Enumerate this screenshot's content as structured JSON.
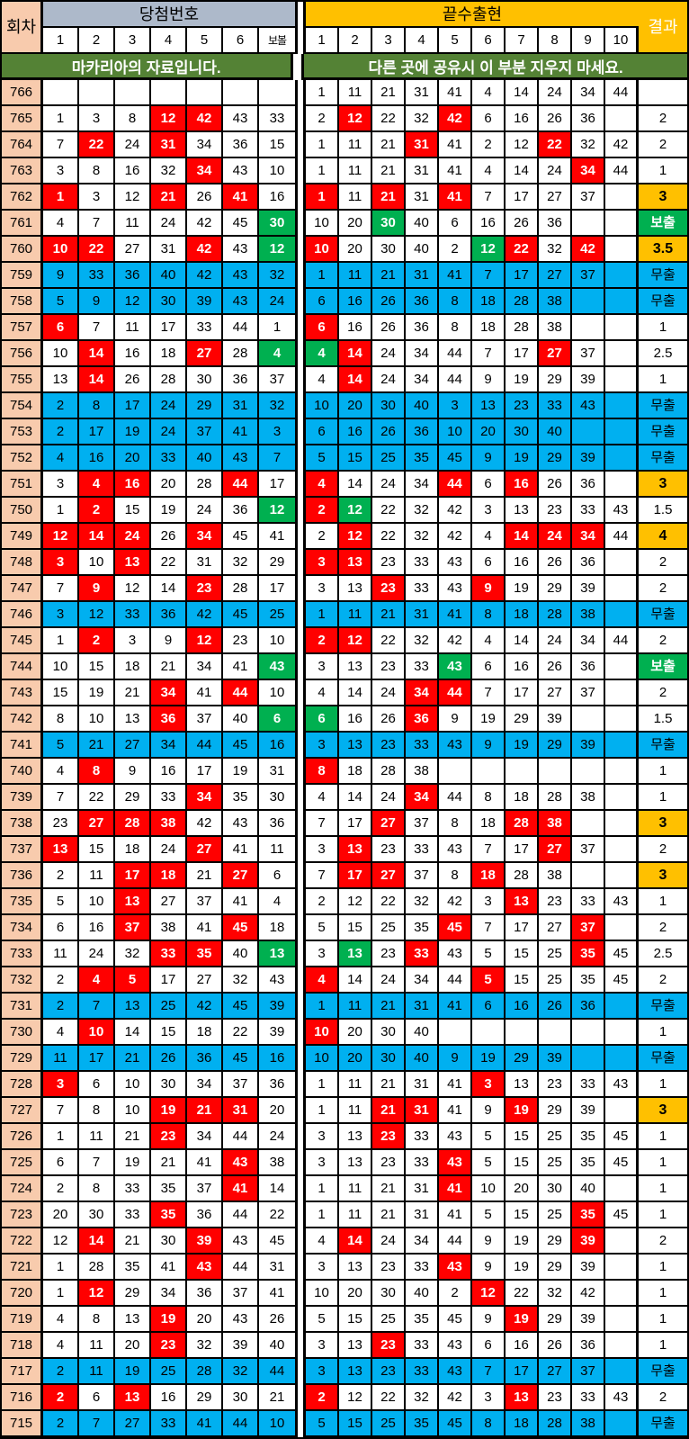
{
  "header": {
    "round_label": "회차",
    "winning_label": "당첨번호",
    "winning_cols": [
      "1",
      "2",
      "3",
      "4",
      "5",
      "6",
      "보볼"
    ],
    "digits_label": "끝수출현",
    "digits_cols": [
      "1",
      "2",
      "3",
      "4",
      "5",
      "6",
      "7",
      "8",
      "9",
      "10"
    ],
    "result_label": "결과"
  },
  "notice": {
    "left": "마카리아의 자료입니다.",
    "right": "다른 곳에 공유시 이 부분 지우지 마세요."
  },
  "colors": {
    "round_bg": "#F8CBAD",
    "winning_header_bg": "#ADB9CA",
    "gold": "#FFC000",
    "notice_bg": "#548235",
    "hit_red": "#FF0000",
    "bonus_green": "#00B050",
    "miss_blue": "#00B0F0"
  },
  "legend": {
    "miss_label": "무출",
    "bonus_label": "보출"
  },
  "rows": [
    {
      "n": "766",
      "l": [
        "",
        "",
        "",
        "",
        "",
        "",
        ""
      ],
      "r": [
        "1",
        "11",
        "21",
        "31",
        "41",
        "4",
        "14",
        "24",
        "34",
        "44"
      ],
      "res": ""
    },
    {
      "n": "765",
      "l": [
        "1",
        "3",
        "8",
        "12:r",
        "42:r",
        "43",
        "33"
      ],
      "r": [
        "2",
        "12:r",
        "22",
        "32",
        "42:r",
        "6",
        "16",
        "26",
        "36",
        ""
      ],
      "res": "2"
    },
    {
      "n": "764",
      "l": [
        "7",
        "22:r",
        "24",
        "31:r",
        "34",
        "36",
        "15"
      ],
      "r": [
        "1",
        "11",
        "21",
        "31:r",
        "41",
        "2",
        "12",
        "22:r",
        "32",
        "42"
      ],
      "res": "2"
    },
    {
      "n": "763",
      "l": [
        "3",
        "8",
        "16",
        "32",
        "34:r",
        "43",
        "10"
      ],
      "r": [
        "1",
        "11",
        "21",
        "31",
        "41",
        "4",
        "14",
        "24",
        "34:r",
        "44"
      ],
      "res": "1"
    },
    {
      "n": "762",
      "l": [
        "1:r",
        "3",
        "12",
        "21:r",
        "26",
        "41:r",
        "16"
      ],
      "r": [
        "1:r",
        "11",
        "21:r",
        "31",
        "41:r",
        "7",
        "17",
        "27",
        "37",
        ""
      ],
      "res": "3:y"
    },
    {
      "n": "761",
      "l": [
        "4",
        "7",
        "11",
        "24",
        "42",
        "45",
        "30:g"
      ],
      "r": [
        "10",
        "20",
        "30:g",
        "40",
        "6",
        "16",
        "26",
        "36",
        "",
        ""
      ],
      "res": "보출:g"
    },
    {
      "n": "760",
      "l": [
        "10:r",
        "22:r",
        "27",
        "31",
        "42:r",
        "43",
        "12:g"
      ],
      "r": [
        "10:r",
        "20",
        "30",
        "40",
        "2",
        "12:g",
        "22:r",
        "32",
        "42:r",
        ""
      ],
      "res": "3.5:y"
    },
    {
      "n": "759",
      "l": [
        "9:b",
        "33:b",
        "36:b",
        "40:b",
        "42:b",
        "43:b",
        "32:b"
      ],
      "r": [
        "1:b",
        "11:b",
        "21:b",
        "31:b",
        "41:b",
        "7:b",
        "17:b",
        "27:b",
        "37:b",
        ":b"
      ],
      "res": "무출:b"
    },
    {
      "n": "758",
      "l": [
        "5:b",
        "9:b",
        "12:b",
        "30:b",
        "39:b",
        "43:b",
        "24:b"
      ],
      "r": [
        "6:b",
        "16:b",
        "26:b",
        "36:b",
        "8:b",
        "18:b",
        "28:b",
        "38:b",
        ":b",
        ":b"
      ],
      "res": "무출:b"
    },
    {
      "n": "757",
      "l": [
        "6:r",
        "7",
        "11",
        "17",
        "33",
        "44",
        "1"
      ],
      "r": [
        "6:r",
        "16",
        "26",
        "36",
        "8",
        "18",
        "28",
        "38",
        "",
        ""
      ],
      "res": "1"
    },
    {
      "n": "756",
      "l": [
        "10",
        "14:r",
        "16",
        "18",
        "27:r",
        "28",
        "4:g"
      ],
      "r": [
        "4:g",
        "14:r",
        "24",
        "34",
        "44",
        "7",
        "17",
        "27:r",
        "37",
        ""
      ],
      "res": "2.5"
    },
    {
      "n": "755",
      "l": [
        "13",
        "14:r",
        "26",
        "28",
        "30",
        "36",
        "37"
      ],
      "r": [
        "4",
        "14:r",
        "24",
        "34",
        "44",
        "9",
        "19",
        "29",
        "39",
        ""
      ],
      "res": "1"
    },
    {
      "n": "754",
      "l": [
        "2:b",
        "8:b",
        "17:b",
        "24:b",
        "29:b",
        "31:b",
        "32:b"
      ],
      "r": [
        "10:b",
        "20:b",
        "30:b",
        "40:b",
        "3:b",
        "13:b",
        "23:b",
        "33:b",
        "43:b",
        ":b"
      ],
      "res": "무출:b"
    },
    {
      "n": "753",
      "l": [
        "2:b",
        "17:b",
        "19:b",
        "24:b",
        "37:b",
        "41:b",
        "3:b"
      ],
      "r": [
        "6:b",
        "16:b",
        "26:b",
        "36:b",
        "10:b",
        "20:b",
        "30:b",
        "40:b",
        ":b",
        ":b"
      ],
      "res": "무출:b"
    },
    {
      "n": "752",
      "l": [
        "4:b",
        "16:b",
        "20:b",
        "33:b",
        "40:b",
        "43:b",
        "7:b"
      ],
      "r": [
        "5:b",
        "15:b",
        "25:b",
        "35:b",
        "45:b",
        "9:b",
        "19:b",
        "29:b",
        "39:b",
        ":b"
      ],
      "res": "무출:b"
    },
    {
      "n": "751",
      "l": [
        "3",
        "4:r",
        "16:r",
        "20",
        "28",
        "44:r",
        "17"
      ],
      "r": [
        "4:r",
        "14",
        "24",
        "34",
        "44:r",
        "6",
        "16:r",
        "26",
        "36",
        ""
      ],
      "res": "3:y"
    },
    {
      "n": "750",
      "l": [
        "1",
        "2:r",
        "15",
        "19",
        "24",
        "36",
        "12:g"
      ],
      "r": [
        "2:r",
        "12:g",
        "22",
        "32",
        "42",
        "3",
        "13",
        "23",
        "33",
        "43"
      ],
      "res": "1.5"
    },
    {
      "n": "749",
      "l": [
        "12:r",
        "14:r",
        "24:r",
        "26",
        "34:r",
        "45",
        "41"
      ],
      "r": [
        "2",
        "12:r",
        "22",
        "32",
        "42",
        "4",
        "14:r",
        "24:r",
        "34:r",
        "44"
      ],
      "res": "4:y"
    },
    {
      "n": "748",
      "l": [
        "3:r",
        "10",
        "13:r",
        "22",
        "31",
        "32",
        "29"
      ],
      "r": [
        "3:r",
        "13:r",
        "23",
        "33",
        "43",
        "6",
        "16",
        "26",
        "36",
        ""
      ],
      "res": "2"
    },
    {
      "n": "747",
      "l": [
        "7",
        "9:r",
        "12",
        "14",
        "23:r",
        "28",
        "17"
      ],
      "r": [
        "3",
        "13",
        "23:r",
        "33",
        "43",
        "9:r",
        "19",
        "29",
        "39",
        ""
      ],
      "res": "2"
    },
    {
      "n": "746",
      "l": [
        "3:b",
        "12:b",
        "33:b",
        "36:b",
        "42:b",
        "45:b",
        "25:b"
      ],
      "r": [
        "1:b",
        "11:b",
        "21:b",
        "31:b",
        "41:b",
        "8:b",
        "18:b",
        "28:b",
        "38:b",
        ":b"
      ],
      "res": "무출:b"
    },
    {
      "n": "745",
      "l": [
        "1",
        "2:r",
        "3",
        "9",
        "12:r",
        "23",
        "10"
      ],
      "r": [
        "2:r",
        "12:r",
        "22",
        "32",
        "42",
        "4",
        "14",
        "24",
        "34",
        "44"
      ],
      "res": "2"
    },
    {
      "n": "744",
      "l": [
        "10",
        "15",
        "18",
        "21",
        "34",
        "41",
        "43:g"
      ],
      "r": [
        "3",
        "13",
        "23",
        "33",
        "43:g",
        "6",
        "16",
        "26",
        "36",
        ""
      ],
      "res": "보출:g"
    },
    {
      "n": "743",
      "l": [
        "15",
        "19",
        "21",
        "34:r",
        "41",
        "44:r",
        "10"
      ],
      "r": [
        "4",
        "14",
        "24",
        "34:r",
        "44:r",
        "7",
        "17",
        "27",
        "37",
        ""
      ],
      "res": "2"
    },
    {
      "n": "742",
      "l": [
        "8",
        "10",
        "13",
        "36:r",
        "37",
        "40",
        "6:g"
      ],
      "r": [
        "6:g",
        "16",
        "26",
        "36:r",
        "9",
        "19",
        "29",
        "39",
        "",
        ""
      ],
      "res": "1.5"
    },
    {
      "n": "741",
      "l": [
        "5:b",
        "21:b",
        "27:b",
        "34:b",
        "44:b",
        "45:b",
        "16:b"
      ],
      "r": [
        "3:b",
        "13:b",
        "23:b",
        "33:b",
        "43:b",
        "9:b",
        "19:b",
        "29:b",
        "39:b",
        ":b"
      ],
      "res": "무출:b"
    },
    {
      "n": "740",
      "l": [
        "4",
        "8:r",
        "9",
        "16",
        "17",
        "19",
        "31"
      ],
      "r": [
        "8:r",
        "18",
        "28",
        "38",
        "",
        "",
        "",
        "",
        "",
        ""
      ],
      "res": "1"
    },
    {
      "n": "739",
      "l": [
        "7",
        "22",
        "29",
        "33",
        "34:r",
        "35",
        "30"
      ],
      "r": [
        "4",
        "14",
        "24",
        "34:r",
        "44",
        "8",
        "18",
        "28",
        "38",
        ""
      ],
      "res": "1"
    },
    {
      "n": "738",
      "l": [
        "23",
        "27:r",
        "28:r",
        "38:r",
        "42",
        "43",
        "36"
      ],
      "r": [
        "7",
        "17",
        "27:r",
        "37",
        "8",
        "18",
        "28:r",
        "38:r",
        "",
        ""
      ],
      "res": "3:y"
    },
    {
      "n": "737",
      "l": [
        "13:r",
        "15",
        "18",
        "24",
        "27:r",
        "41",
        "11"
      ],
      "r": [
        "3",
        "13:r",
        "23",
        "33",
        "43",
        "7",
        "17",
        "27:r",
        "37",
        ""
      ],
      "res": "2"
    },
    {
      "n": "736",
      "l": [
        "2",
        "11",
        "17:r",
        "18:r",
        "21",
        "27:r",
        "6"
      ],
      "r": [
        "7",
        "17:r",
        "27:r",
        "37",
        "8",
        "18:r",
        "28",
        "38",
        "",
        ""
      ],
      "res": "3:y"
    },
    {
      "n": "735",
      "l": [
        "5",
        "10",
        "13:r",
        "27",
        "37",
        "41",
        "4"
      ],
      "r": [
        "2",
        "12",
        "22",
        "32",
        "42",
        "3",
        "13:r",
        "23",
        "33",
        "43"
      ],
      "res": "1"
    },
    {
      "n": "734",
      "l": [
        "6",
        "16",
        "37:r",
        "38",
        "41",
        "45:r",
        "18"
      ],
      "r": [
        "5",
        "15",
        "25",
        "35",
        "45:r",
        "7",
        "17",
        "27",
        "37:r",
        ""
      ],
      "res": "2"
    },
    {
      "n": "733",
      "l": [
        "11",
        "24",
        "32",
        "33:r",
        "35:r",
        "40",
        "13:g"
      ],
      "r": [
        "3",
        "13:g",
        "23",
        "33:r",
        "43",
        "5",
        "15",
        "25",
        "35:r",
        "45"
      ],
      "res": "2.5"
    },
    {
      "n": "732",
      "l": [
        "2",
        "4:r",
        "5:r",
        "17",
        "27",
        "32",
        "43"
      ],
      "r": [
        "4:r",
        "14",
        "24",
        "34",
        "44",
        "5:r",
        "15",
        "25",
        "35",
        "45"
      ],
      "res": "2"
    },
    {
      "n": "731",
      "l": [
        "2:b",
        "7:b",
        "13:b",
        "25:b",
        "42:b",
        "45:b",
        "39:b"
      ],
      "r": [
        "1:b",
        "11:b",
        "21:b",
        "31:b",
        "41:b",
        "6:b",
        "16:b",
        "26:b",
        "36:b",
        ":b"
      ],
      "res": "무출:b"
    },
    {
      "n": "730",
      "l": [
        "4",
        "10:r",
        "14",
        "15",
        "18",
        "22",
        "39"
      ],
      "r": [
        "10:r",
        "20",
        "30",
        "40",
        "",
        "",
        "",
        "",
        "",
        ""
      ],
      "res": "1"
    },
    {
      "n": "729",
      "l": [
        "11:b",
        "17:b",
        "21:b",
        "26:b",
        "36:b",
        "45:b",
        "16:b"
      ],
      "r": [
        "10:b",
        "20:b",
        "30:b",
        "40:b",
        "9:b",
        "19:b",
        "29:b",
        "39:b",
        ":b",
        ":b"
      ],
      "res": "무출:b"
    },
    {
      "n": "728",
      "l": [
        "3:r",
        "6",
        "10",
        "30",
        "34",
        "37",
        "36"
      ],
      "r": [
        "1",
        "11",
        "21",
        "31",
        "41",
        "3:r",
        "13",
        "23",
        "33",
        "43"
      ],
      "res": "1"
    },
    {
      "n": "727",
      "l": [
        "7",
        "8",
        "10",
        "19:r",
        "21:r",
        "31:r",
        "20"
      ],
      "r": [
        "1",
        "11",
        "21:r",
        "31:r",
        "41",
        "9",
        "19:r",
        "29",
        "39",
        ""
      ],
      "res": "3:y"
    },
    {
      "n": "726",
      "l": [
        "1",
        "11",
        "21",
        "23:r",
        "34",
        "44",
        "24"
      ],
      "r": [
        "3",
        "13",
        "23:r",
        "33",
        "43",
        "5",
        "15",
        "25",
        "35",
        "45"
      ],
      "res": "1"
    },
    {
      "n": "725",
      "l": [
        "6",
        "7",
        "19",
        "21",
        "41",
        "43:r",
        "38"
      ],
      "r": [
        "3",
        "13",
        "23",
        "33",
        "43:r",
        "5",
        "15",
        "25",
        "35",
        "45"
      ],
      "res": "1"
    },
    {
      "n": "724",
      "l": [
        "2",
        "8",
        "33",
        "35",
        "37",
        "41:r",
        "14"
      ],
      "r": [
        "1",
        "11",
        "21",
        "31",
        "41:r",
        "10",
        "20",
        "30",
        "40",
        ""
      ],
      "res": "1"
    },
    {
      "n": "723",
      "l": [
        "20",
        "30",
        "33",
        "35:r",
        "36",
        "44",
        "22"
      ],
      "r": [
        "1",
        "11",
        "21",
        "31",
        "41",
        "5",
        "15",
        "25",
        "35:r",
        "45"
      ],
      "res": "1"
    },
    {
      "n": "722",
      "l": [
        "12",
        "14:r",
        "21",
        "30",
        "39:r",
        "43",
        "45"
      ],
      "r": [
        "4",
        "14:r",
        "24",
        "34",
        "44",
        "9",
        "19",
        "29",
        "39:r",
        ""
      ],
      "res": "2"
    },
    {
      "n": "721",
      "l": [
        "1",
        "28",
        "35",
        "41",
        "43:r",
        "44",
        "31"
      ],
      "r": [
        "3",
        "13",
        "23",
        "33",
        "43:r",
        "9",
        "19",
        "29",
        "39",
        ""
      ],
      "res": "1"
    },
    {
      "n": "720",
      "l": [
        "1",
        "12:r",
        "29",
        "34",
        "36",
        "37",
        "41"
      ],
      "r": [
        "10",
        "20",
        "30",
        "40",
        "2",
        "12:r",
        "22",
        "32",
        "42",
        ""
      ],
      "res": "1"
    },
    {
      "n": "719",
      "l": [
        "4",
        "8",
        "13",
        "19:r",
        "20",
        "43",
        "26"
      ],
      "r": [
        "5",
        "15",
        "25",
        "35",
        "45",
        "9",
        "19:r",
        "29",
        "39",
        ""
      ],
      "res": "1"
    },
    {
      "n": "718",
      "l": [
        "4",
        "11",
        "20",
        "23:r",
        "32",
        "39",
        "40"
      ],
      "r": [
        "3",
        "13",
        "23:r",
        "33",
        "43",
        "6",
        "16",
        "26",
        "36",
        ""
      ],
      "res": "1"
    },
    {
      "n": "717",
      "l": [
        "2:b",
        "11:b",
        "19:b",
        "25:b",
        "28:b",
        "32:b",
        "44:b"
      ],
      "r": [
        "3:b",
        "13:b",
        "23:b",
        "33:b",
        "43:b",
        "7:b",
        "17:b",
        "27:b",
        "37:b",
        ":b"
      ],
      "res": "무출:b"
    },
    {
      "n": "716",
      "l": [
        "2:r",
        "6",
        "13:r",
        "16",
        "29",
        "30",
        "21"
      ],
      "r": [
        "2:r",
        "12",
        "22",
        "32",
        "42",
        "3",
        "13:r",
        "23",
        "33",
        "43"
      ],
      "res": "2"
    },
    {
      "n": "715",
      "l": [
        "2:b",
        "7:b",
        "27:b",
        "33:b",
        "41:b",
        "44:b",
        "10:b"
      ],
      "r": [
        "5:b",
        "15:b",
        "25:b",
        "35:b",
        "45:b",
        "8:b",
        "18:b",
        "28:b",
        "38:b",
        ":b"
      ],
      "res": "무출:b"
    }
  ]
}
